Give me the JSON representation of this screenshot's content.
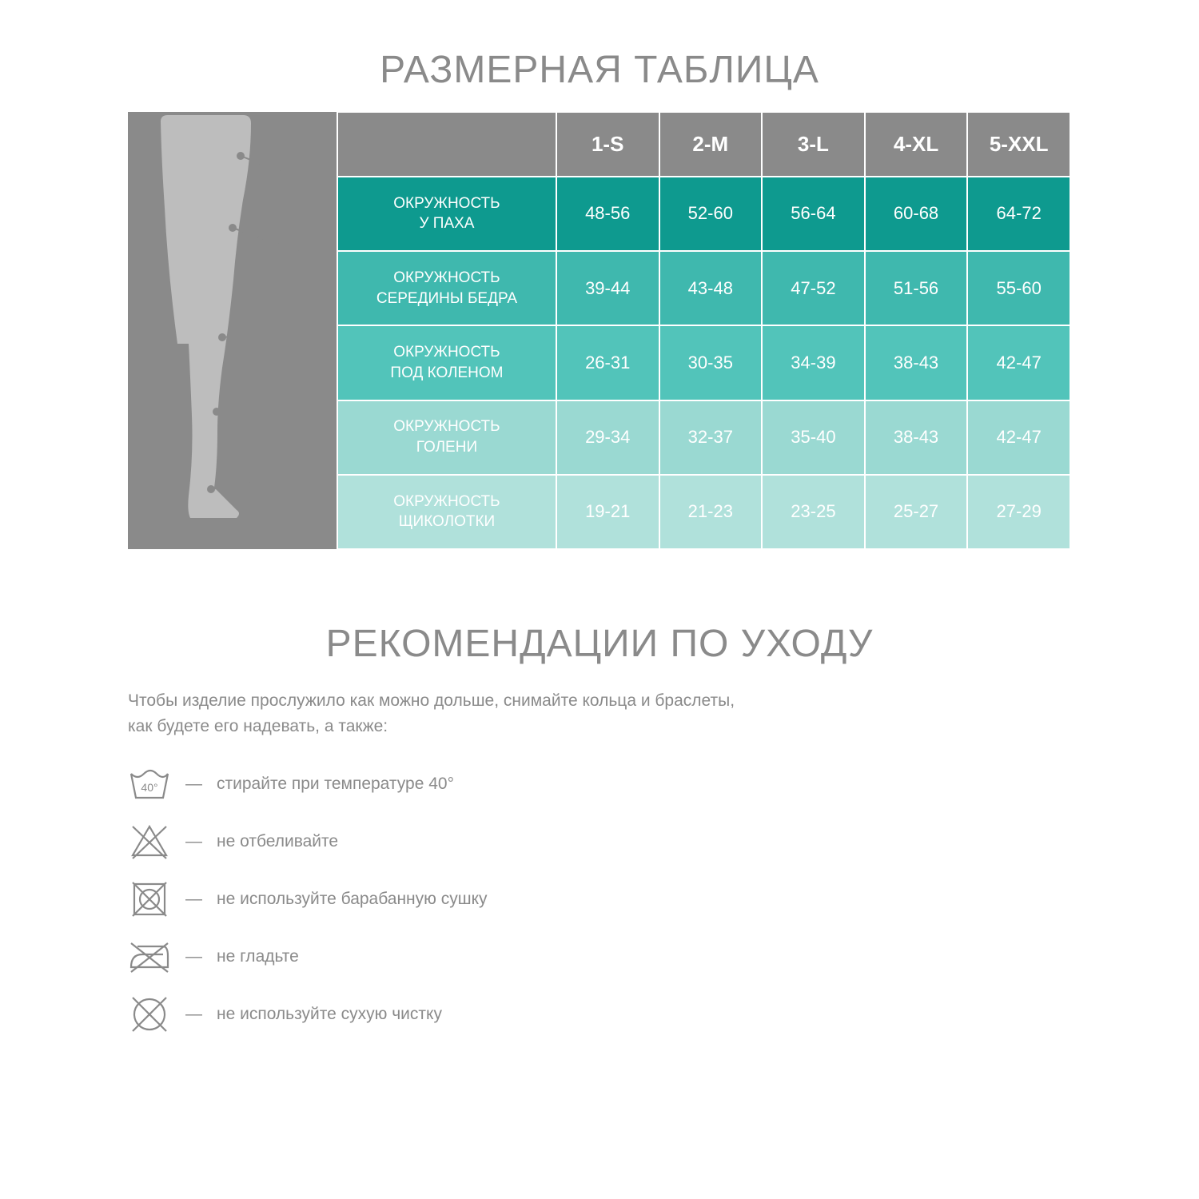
{
  "colors": {
    "title_text": "#8a8a8a",
    "header_bg": "#8a8a8a",
    "diagram_fill": "#bdbdbd",
    "diagram_line": "#8a8a8a",
    "care_text": "#8a8a8a",
    "care_icon_stroke": "#8a8a8a",
    "row_colors": [
      "#0e9a8f",
      "#3fb8ae",
      "#52c4ba",
      "#9ad9d2",
      "#b0e1db"
    ]
  },
  "size_table": {
    "title": "РАЗМЕРНАЯ ТАБЛИЦА",
    "sizes": [
      "1-S",
      "2-M",
      "3-L",
      "4-XL",
      "5-XXL"
    ],
    "rows": [
      {
        "label": "ОКРУЖНОСТЬ\nУ ПАХА",
        "values": [
          "48-56",
          "52-60",
          "56-64",
          "60-68",
          "64-72"
        ]
      },
      {
        "label": "ОКРУЖНОСТЬ\nСЕРЕДИНЫ БЕДРА",
        "values": [
          "39-44",
          "43-48",
          "47-52",
          "51-56",
          "55-60"
        ]
      },
      {
        "label": "ОКРУЖНОСТЬ\nПОД КОЛЕНОМ",
        "values": [
          "26-31",
          "30-35",
          "34-39",
          "38-43",
          "42-47"
        ]
      },
      {
        "label": "ОКРУЖНОСТЬ\nГОЛЕНИ",
        "values": [
          "29-34",
          "32-37",
          "35-40",
          "38-43",
          "42-47"
        ]
      },
      {
        "label": "ОКРУЖНОСТЬ\nЩИКОЛОТКИ",
        "values": [
          "19-21",
          "21-23",
          "23-25",
          "25-27",
          "27-29"
        ]
      }
    ]
  },
  "care": {
    "title": "РЕКОМЕНДАЦИИ ПО УХОДУ",
    "intro": "Чтобы изделие прослужило как можно дольше, снимайте кольца и браслеты,\nкак будете его надевать, а также:",
    "items": [
      {
        "icon": "wash-40",
        "text": "стирайте при температуре 40°"
      },
      {
        "icon": "no-bleach",
        "text": "не отбеливайте"
      },
      {
        "icon": "no-tumble",
        "text": "не используйте барабанную сушку"
      },
      {
        "icon": "no-iron",
        "text": "не гладьте"
      },
      {
        "icon": "no-dryclean",
        "text": "не используйте сухую чистку"
      }
    ]
  }
}
